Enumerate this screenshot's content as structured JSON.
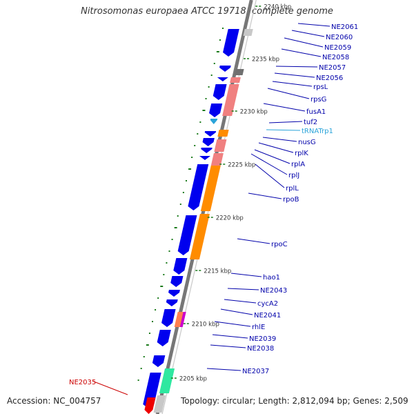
{
  "title": "Nitrosomonas europaea ATCC 19718, complete genome",
  "accession": "Accession: NC_004757",
  "topology": "Topology: circular; Length: 2,812,094 bp; Genes: 2,509",
  "colors": {
    "cds": "#0000ee",
    "rrna_pink": "#f08080",
    "rpo_orange": "#ff8c00",
    "trna": "#29a3d9",
    "tick": "#1a7a1a",
    "label": "#0000aa",
    "highlight": "#cc0000",
    "teal": "#2ee8a0"
  },
  "kbp_ticks": [
    {
      "label": "2240 kbp"
    },
    {
      "label": "2235 kbp"
    },
    {
      "label": "2230 kbp"
    },
    {
      "label": "2225 kbp"
    },
    {
      "label": "2220 kbp"
    },
    {
      "label": "2215 kbp"
    },
    {
      "label": "2210 kbp"
    },
    {
      "label": "2205 kbp"
    }
  ],
  "genes": [
    {
      "label": "NE2061"
    },
    {
      "label": "NE2060"
    },
    {
      "label": "NE2059"
    },
    {
      "label": "NE2058"
    },
    {
      "label": "NE2057"
    },
    {
      "label": "NE2056"
    },
    {
      "label": "rpsL"
    },
    {
      "label": "rpsG"
    },
    {
      "label": "fusA1"
    },
    {
      "label": "tuf2"
    },
    {
      "label": "tRNATrp1"
    },
    {
      "label": "nusG"
    },
    {
      "label": "rplK"
    },
    {
      "label": "rplA"
    },
    {
      "label": "rplJ"
    },
    {
      "label": "rplL"
    },
    {
      "label": "rpoB"
    },
    {
      "label": "rpoC"
    },
    {
      "label": "hao1"
    },
    {
      "label": "NE2043"
    },
    {
      "label": "cycA2"
    },
    {
      "label": "NE2041"
    },
    {
      "label": "rhlE"
    },
    {
      "label": "NE2039"
    },
    {
      "label": "NE2038"
    },
    {
      "label": "NE2037"
    },
    {
      "label": "NE2035"
    }
  ]
}
